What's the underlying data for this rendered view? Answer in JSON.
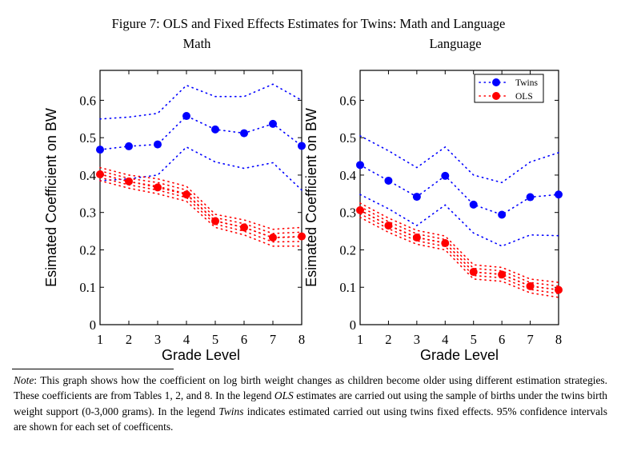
{
  "figure_title": "Figure 7: OLS and Fixed Effects Estimates for Twins: Math and Language",
  "colors": {
    "Twins": "#0000ff",
    "OLS": "#ff0000"
  },
  "chart_data": [
    {
      "type": "line",
      "title": "Math",
      "xlabel": "Grade Level",
      "ylabel": "Esimated Coefficient on BW",
      "x": [
        1,
        2,
        3,
        4,
        5,
        6,
        7,
        8
      ],
      "xticks": [
        "1",
        "2",
        "3",
        "4",
        "5",
        "6",
        "7",
        "8"
      ],
      "yticks": [
        "0",
        "0.1",
        "0.2",
        "0.3",
        "0.4",
        "0.5",
        "0.6"
      ],
      "ylim": [
        0,
        0.68
      ],
      "xlim": [
        1,
        8
      ],
      "grid": false,
      "legend": "none",
      "series": [
        {
          "name": "Twins",
          "values": [
            0.468,
            0.477,
            0.482,
            0.558,
            0.522,
            0.512,
            0.537,
            0.478
          ],
          "ci_upper": [
            0.55,
            0.555,
            0.565,
            0.64,
            0.61,
            0.61,
            0.643,
            0.6
          ],
          "ci_lower": [
            0.385,
            0.39,
            0.4,
            0.475,
            0.435,
            0.418,
            0.433,
            0.36
          ]
        },
        {
          "name": "OLS",
          "values": [
            0.402,
            0.383,
            0.367,
            0.348,
            0.277,
            0.26,
            0.233,
            0.236
          ],
          "ci_upper": [
            0.42,
            0.4,
            0.39,
            0.37,
            0.295,
            0.28,
            0.255,
            0.26
          ],
          "ci_lower": [
            0.385,
            0.365,
            0.35,
            0.33,
            0.26,
            0.24,
            0.21,
            0.21
          ]
        }
      ]
    },
    {
      "type": "line",
      "title": "Language",
      "xlabel": "Grade Level",
      "ylabel": "Esimated Coefficient on BW",
      "x": [
        1,
        2,
        3,
        4,
        5,
        6,
        7,
        8
      ],
      "xticks": [
        "1",
        "2",
        "3",
        "4",
        "5",
        "6",
        "7",
        "8"
      ],
      "yticks": [
        "0",
        "0.1",
        "0.2",
        "0.3",
        "0.4",
        "0.5",
        "0.6"
      ],
      "ylim": [
        0,
        0.68
      ],
      "xlim": [
        1,
        8
      ],
      "grid": false,
      "legend": "top-right",
      "series": [
        {
          "name": "Twins",
          "values": [
            0.427,
            0.385,
            0.342,
            0.398,
            0.321,
            0.294,
            0.341,
            0.348
          ],
          "ci_upper": [
            0.505,
            0.465,
            0.42,
            0.475,
            0.4,
            0.38,
            0.435,
            0.46
          ],
          "ci_lower": [
            0.348,
            0.31,
            0.265,
            0.32,
            0.245,
            0.21,
            0.24,
            0.238
          ]
        },
        {
          "name": "OLS",
          "values": [
            0.306,
            0.265,
            0.233,
            0.218,
            0.141,
            0.134,
            0.103,
            0.093
          ],
          "ci_upper": [
            0.325,
            0.285,
            0.252,
            0.237,
            0.16,
            0.153,
            0.122,
            0.113
          ],
          "ci_lower": [
            0.287,
            0.247,
            0.215,
            0.2,
            0.122,
            0.116,
            0.085,
            0.073
          ]
        }
      ]
    }
  ],
  "note": {
    "label": "Note",
    "p1": ": This graph shows how the coefficient on log birth weight changes as children become older using different estimation strategies. These coefficients are from Tables 1, 2, and 8. In the legend ",
    "ols": "OLS",
    "p2": " estimates are carried out using the sample of births under the twins birth weight support (0-3,000 grams).  In the legend ",
    "twins": "Twins",
    "p3": " indicates estimated carried out using twins fixed effects. 95% confidence intervals are shown for each set of coefficents."
  }
}
